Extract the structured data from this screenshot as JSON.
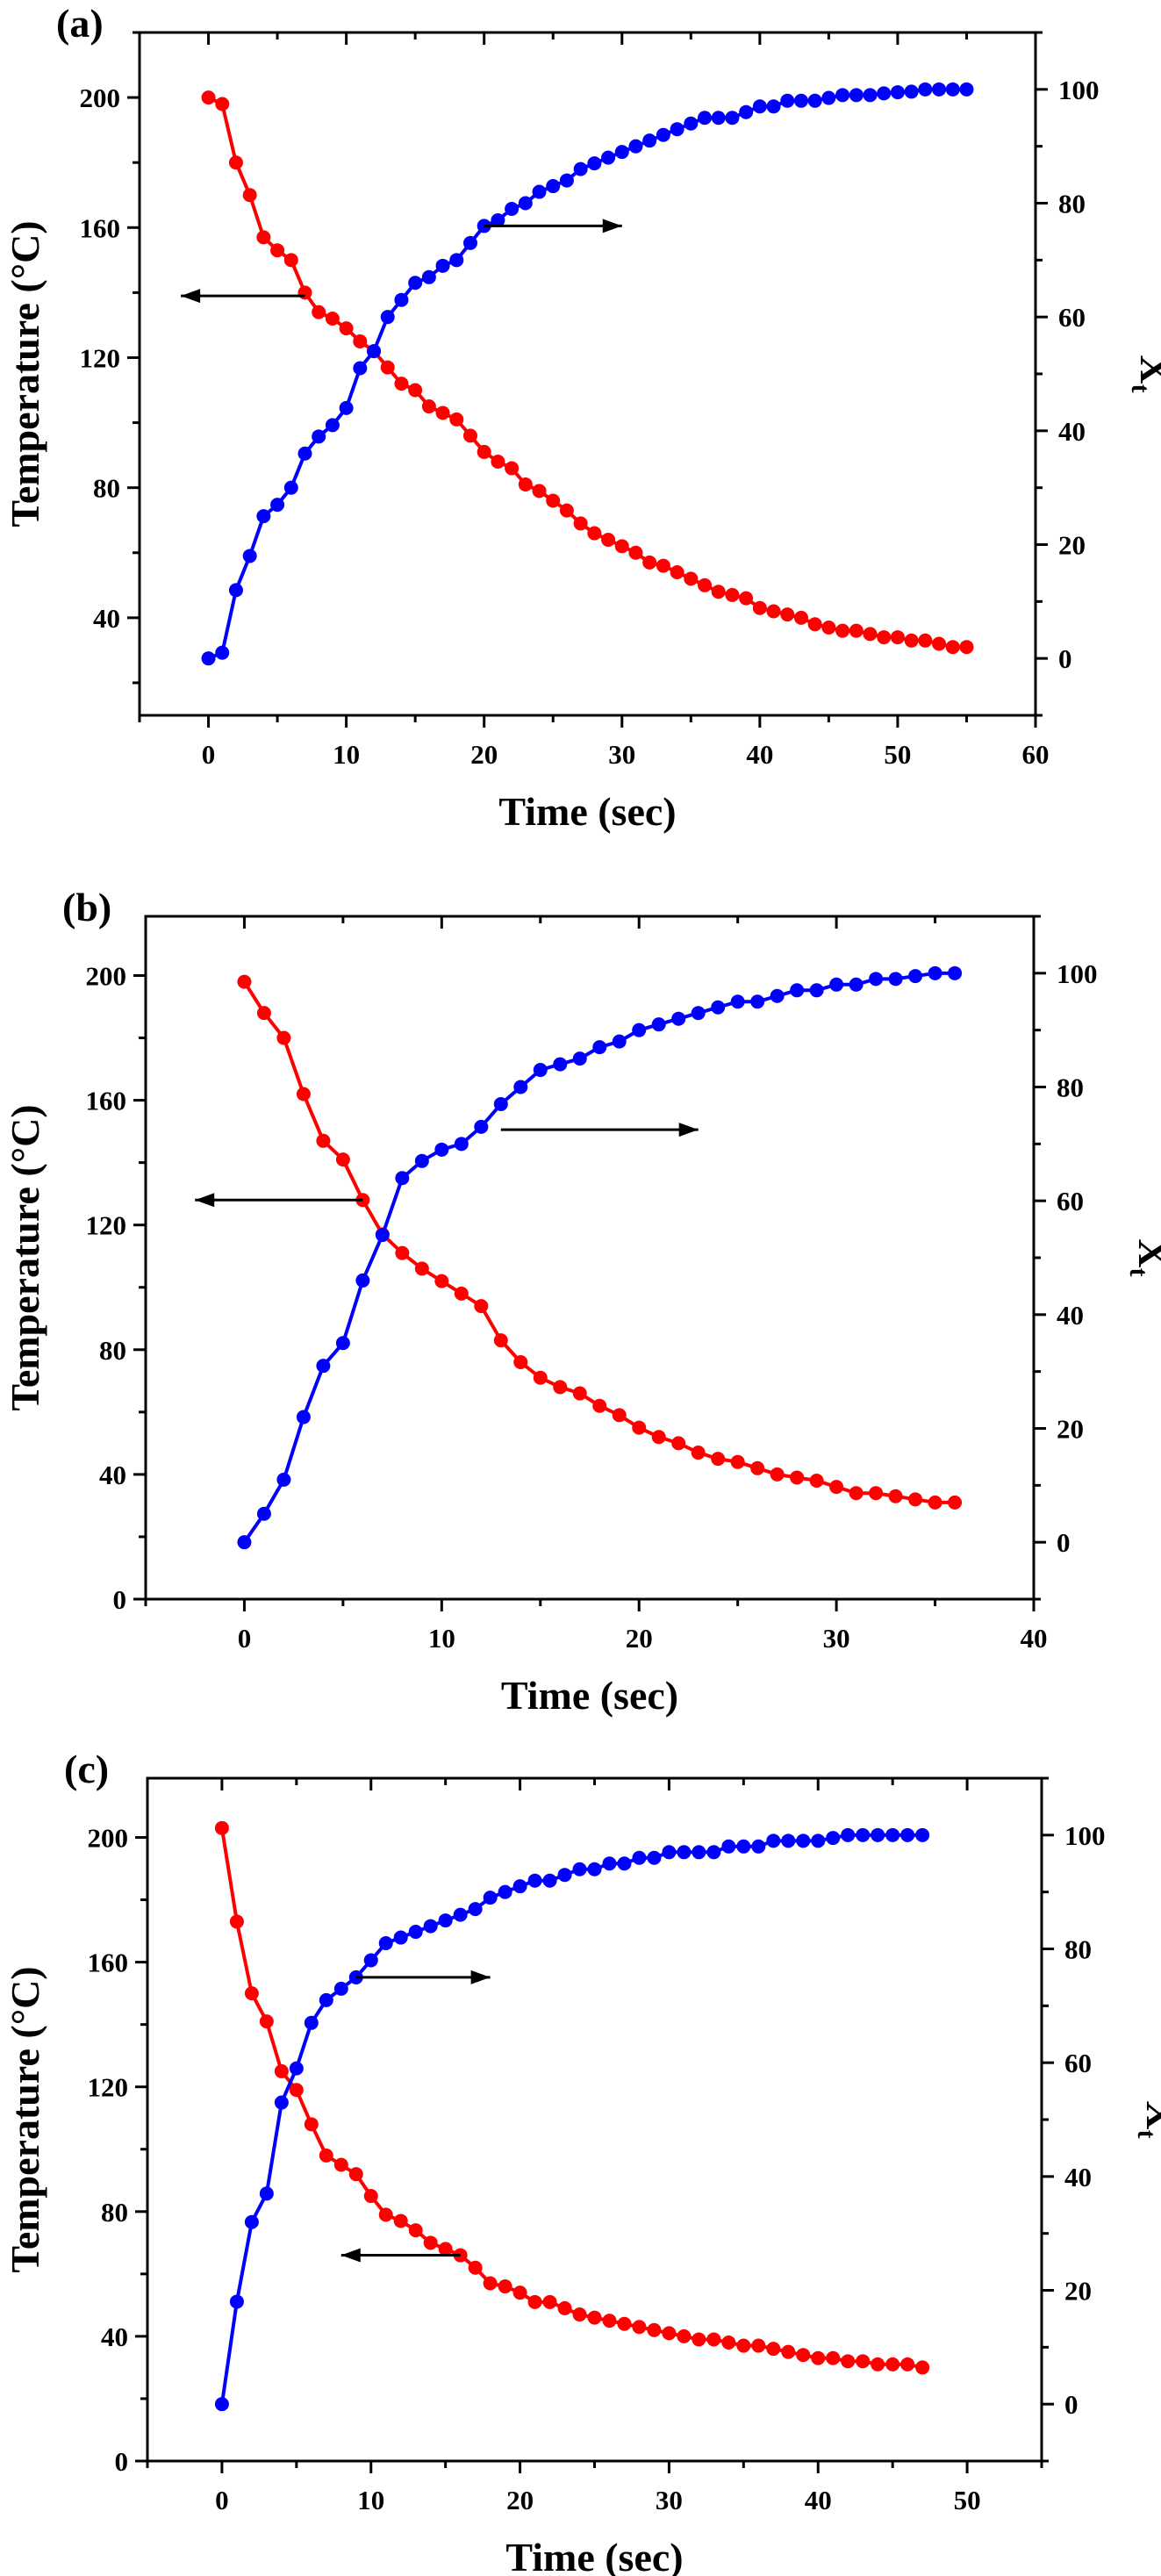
{
  "chart_data": [
    {
      "type": "line",
      "panel_label": "(a)",
      "xlabel": "Time (sec)",
      "ylabel": "Temperature (°C)",
      "y2label": "X",
      "y2label_subscript": "t",
      "xlim": [
        -5,
        60
      ],
      "ylim": [
        10,
        220
      ],
      "y2lim": [
        -10,
        110
      ],
      "xticks": [
        0,
        10,
        20,
        30,
        40,
        50,
        60
      ],
      "yticks": [
        40,
        80,
        120,
        160,
        200
      ],
      "y2ticks": [
        0,
        20,
        40,
        60,
        80,
        100
      ],
      "grid": false,
      "annotations": [
        {
          "type": "arrow",
          "direction": "left",
          "points_to_axis": "Temperature",
          "from": [
            7,
            139
          ],
          "to": [
            -2,
            139
          ]
        },
        {
          "type": "arrow",
          "direction": "right",
          "points_to_axis": "Xt",
          "from": [
            20,
            76
          ],
          "to": [
            30,
            76
          ]
        }
      ],
      "series": [
        {
          "name": "Temperature",
          "axis": "left",
          "color": "#ff0000",
          "x": [
            0,
            1,
            2,
            3,
            4,
            5,
            6,
            7,
            8,
            9,
            10,
            11,
            12,
            13,
            14,
            15,
            16,
            17,
            18,
            19,
            20,
            21,
            22,
            23,
            24,
            25,
            26,
            27,
            28,
            29,
            30,
            31,
            32,
            33,
            34,
            35,
            36,
            37,
            38,
            39,
            40,
            41,
            42,
            43,
            44,
            45,
            46,
            47,
            48,
            49,
            50,
            51,
            52,
            53,
            54,
            55
          ],
          "values": [
            200,
            198,
            180,
            170,
            157,
            153,
            150,
            140,
            134,
            132,
            129,
            125,
            122,
            117,
            112,
            110,
            105,
            103,
            101,
            96,
            91,
            88,
            86,
            81,
            79,
            76,
            73,
            69,
            66,
            64,
            62,
            60,
            57,
            56,
            54,
            52,
            50,
            48,
            47,
            46,
            43,
            42,
            41,
            40,
            38,
            37,
            36,
            36,
            35,
            34,
            34,
            33,
            33,
            32,
            31,
            31
          ]
        },
        {
          "name": "Xt",
          "axis": "right",
          "color": "#0000ff",
          "x": [
            0,
            1,
            2,
            3,
            4,
            5,
            6,
            7,
            8,
            9,
            10,
            11,
            12,
            13,
            14,
            15,
            16,
            17,
            18,
            19,
            20,
            21,
            22,
            23,
            24,
            25,
            26,
            27,
            28,
            29,
            30,
            31,
            32,
            33,
            34,
            35,
            36,
            37,
            38,
            39,
            40,
            41,
            42,
            43,
            44,
            45,
            46,
            47,
            48,
            49,
            50,
            51,
            52,
            53,
            54,
            55
          ],
          "values": [
            0,
            1,
            12,
            18,
            25,
            27,
            30,
            36,
            39,
            41,
            44,
            51,
            54,
            60,
            63,
            66,
            67,
            69,
            70,
            73,
            76,
            77,
            79,
            80,
            82,
            83,
            84,
            86,
            87,
            88,
            89,
            90,
            91,
            92,
            93,
            94,
            95,
            95,
            95,
            96,
            97,
            97,
            98,
            98,
            98,
            98.5,
            99,
            99,
            99,
            99.3,
            99.5,
            99.6,
            100,
            100,
            100,
            100
          ]
        }
      ]
    },
    {
      "type": "line",
      "panel_label": "(b)",
      "xlabel": "Time (sec)",
      "ylabel": "Temperature (°C)",
      "y2label": "X",
      "y2label_subscript": "t",
      "xlim": [
        -5,
        40
      ],
      "ylim": [
        0,
        219
      ],
      "y2lim": [
        -10,
        110
      ],
      "xticks": [
        0,
        10,
        20,
        30,
        40
      ],
      "yticks": [
        0,
        40,
        80,
        120,
        160,
        200
      ],
      "y2ticks": [
        0,
        20,
        40,
        60,
        80,
        100
      ],
      "grid": false,
      "annotations": [
        {
          "type": "arrow",
          "direction": "left",
          "points_to_axis": "Temperature",
          "from": [
            6,
            128
          ],
          "to": [
            -2.5,
            128
          ]
        },
        {
          "type": "arrow",
          "direction": "right",
          "points_to_axis": "Xt",
          "from": [
            13,
            72.5
          ],
          "to": [
            23,
            72.5
          ]
        }
      ],
      "series": [
        {
          "name": "Temperature",
          "axis": "left",
          "color": "#ff0000",
          "x": [
            0,
            1,
            2,
            3,
            4,
            5,
            6,
            7,
            8,
            9,
            10,
            11,
            12,
            13,
            14,
            15,
            16,
            17,
            18,
            19,
            20,
            21,
            22,
            23,
            24,
            25,
            26,
            27,
            28,
            29,
            30,
            31,
            32,
            33,
            34,
            35,
            36
          ],
          "values": [
            198,
            188,
            180,
            162,
            147,
            141,
            128,
            117,
            111,
            106,
            102,
            98,
            94,
            83,
            76,
            71,
            68,
            66,
            62,
            59,
            55,
            52,
            50,
            47,
            45,
            44,
            42,
            40,
            39,
            38,
            36,
            34,
            34,
            33,
            32,
            31,
            31
          ]
        },
        {
          "name": "Xt",
          "axis": "right",
          "color": "#0000ff",
          "x": [
            0,
            1,
            2,
            3,
            4,
            5,
            6,
            7,
            8,
            9,
            10,
            11,
            12,
            13,
            14,
            15,
            16,
            17,
            18,
            19,
            20,
            21,
            22,
            23,
            24,
            25,
            26,
            27,
            28,
            29,
            30,
            31,
            32,
            33,
            34,
            35,
            36
          ],
          "values": [
            0,
            5,
            11,
            22,
            31,
            35,
            46,
            54,
            64,
            67,
            69,
            70,
            73,
            77,
            80,
            83,
            84,
            85,
            87,
            88,
            90,
            91,
            92,
            93,
            94,
            95,
            95,
            96,
            97,
            97,
            98,
            98,
            99,
            99,
            99.5,
            100,
            100
          ]
        }
      ]
    },
    {
      "type": "line",
      "panel_label": "(c)",
      "xlabel": "Time (sec)",
      "ylabel": "Temperature (°C)",
      "y2label": "X",
      "y2label_subscript": "t",
      "xlim": [
        -5,
        55
      ],
      "ylim": [
        0,
        219
      ],
      "y2lim": [
        -10,
        110
      ],
      "xticks": [
        0,
        10,
        20,
        30,
        40,
        50
      ],
      "yticks": [
        0,
        40,
        80,
        120,
        160,
        200
      ],
      "y2ticks": [
        0,
        20,
        40,
        60,
        80,
        100
      ],
      "grid": false,
      "annotations": [
        {
          "type": "arrow",
          "direction": "left",
          "points_to_axis": "Temperature",
          "from": [
            16,
            66
          ],
          "to": [
            8,
            66
          ]
        },
        {
          "type": "arrow",
          "direction": "right",
          "points_to_axis": "Xt",
          "from": [
            9,
            75
          ],
          "to": [
            18,
            75
          ]
        }
      ],
      "series": [
        {
          "name": "Temperature",
          "axis": "left",
          "color": "#ff0000",
          "x": [
            0,
            1,
            2,
            3,
            4,
            5,
            6,
            7,
            8,
            9,
            10,
            11,
            12,
            13,
            14,
            15,
            16,
            17,
            18,
            19,
            20,
            21,
            22,
            23,
            24,
            25,
            26,
            27,
            28,
            29,
            30,
            31,
            32,
            33,
            34,
            35,
            36,
            37,
            38,
            39,
            40,
            41,
            42,
            43,
            44,
            45,
            46,
            47
          ],
          "values": [
            203,
            173,
            150,
            141,
            125,
            119,
            108,
            98,
            95,
            92,
            85,
            79,
            77,
            74,
            70,
            68,
            66,
            62,
            57,
            56,
            54,
            51,
            51,
            49,
            47,
            46,
            45,
            44,
            43,
            42,
            41,
            40,
            39,
            39,
            38,
            37,
            37,
            36,
            35,
            34,
            33,
            33,
            32,
            32,
            31,
            31,
            31,
            30
          ]
        },
        {
          "name": "Xt",
          "axis": "right",
          "color": "#0000ff",
          "x": [
            0,
            1,
            2,
            3,
            4,
            5,
            6,
            7,
            8,
            9,
            10,
            11,
            12,
            13,
            14,
            15,
            16,
            17,
            18,
            19,
            20,
            21,
            22,
            23,
            24,
            25,
            26,
            27,
            28,
            29,
            30,
            31,
            32,
            33,
            34,
            35,
            36,
            37,
            38,
            39,
            40,
            41,
            42,
            43,
            44,
            45,
            46,
            47
          ],
          "values": [
            0,
            18,
            32,
            37,
            53,
            59,
            67,
            71,
            73,
            75,
            78,
            81,
            82,
            83,
            84,
            85,
            86,
            87,
            89,
            90,
            91,
            92,
            92,
            93,
            94,
            94,
            95,
            95,
            96,
            96,
            97,
            97,
            97,
            97,
            98,
            98,
            98,
            99,
            99,
            99,
            99,
            99.5,
            100,
            100,
            100,
            100,
            100,
            100
          ]
        }
      ]
    }
  ]
}
